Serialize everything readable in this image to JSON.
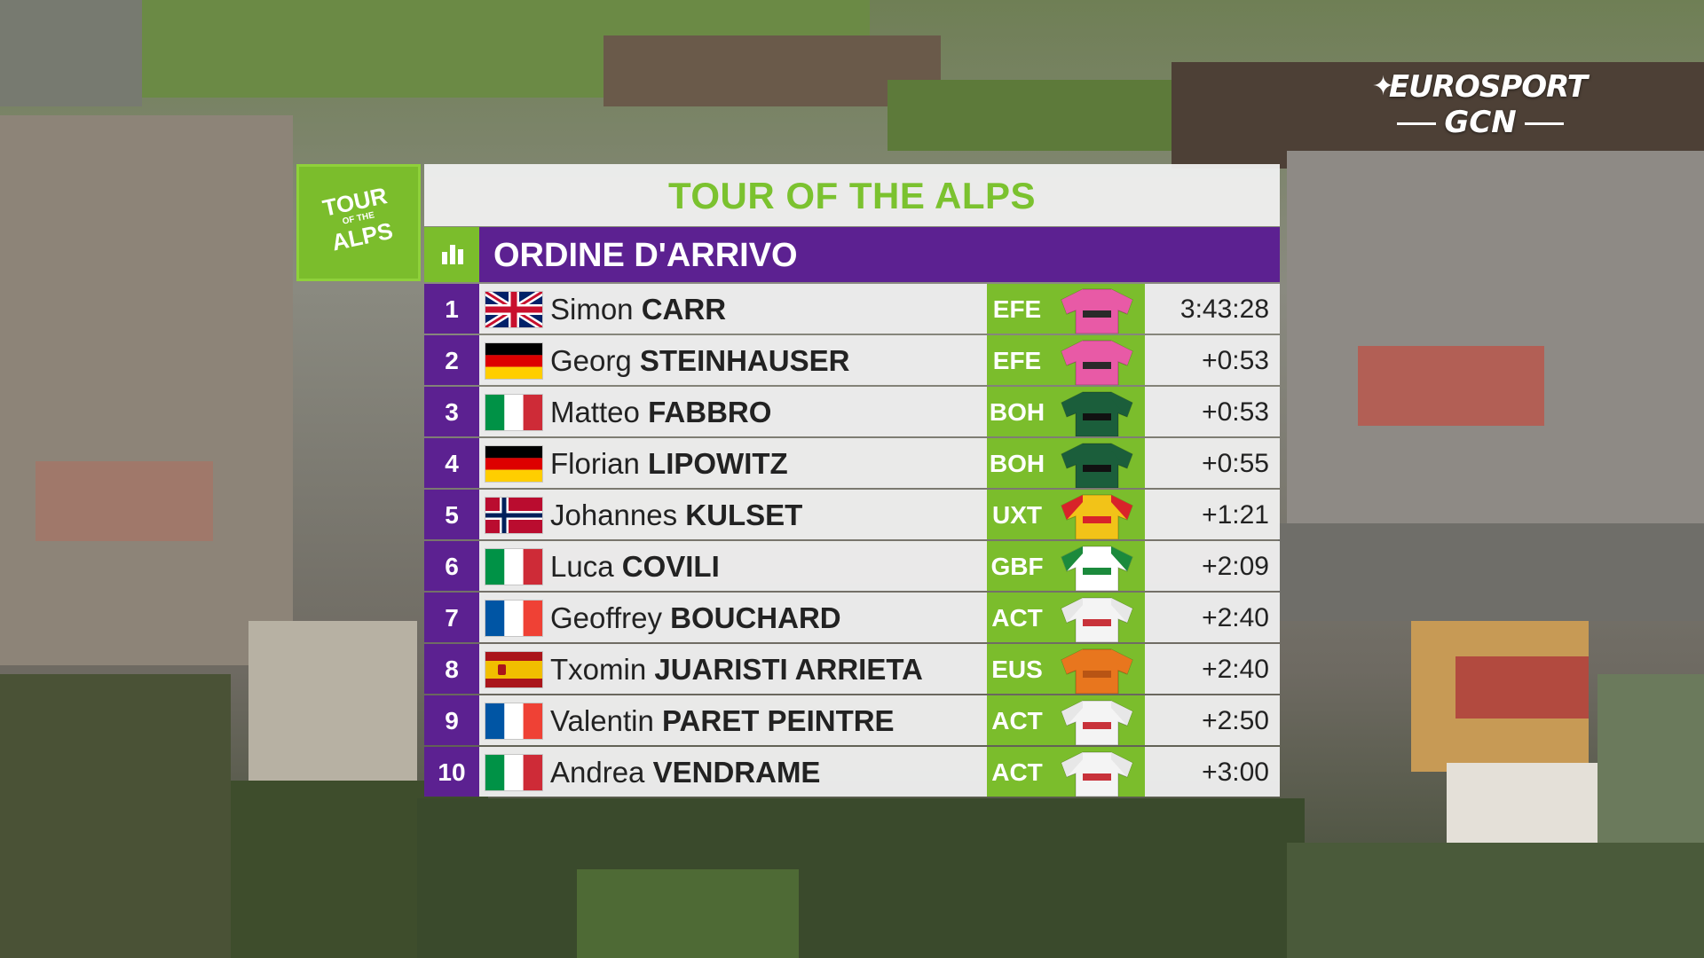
{
  "broadcaster": {
    "line1": "EUROSPORT",
    "line2": "GCN"
  },
  "race_logo": {
    "word1": "TOUR",
    "word2": "OF THE",
    "word3": "ALPS"
  },
  "title": "TOUR OF THE ALPS",
  "header": "ORDINE D'ARRIVO",
  "colors": {
    "purple": "#5c2191",
    "green": "#7bbd2c",
    "title_green": "#7bc22f"
  },
  "results": [
    {
      "pos": "1",
      "flag": "gb",
      "first": "Simon",
      "last": "CARR",
      "team": "EFE",
      "jersey": "ef",
      "time": "3:43:28"
    },
    {
      "pos": "2",
      "flag": "de",
      "first": "Georg",
      "last": "STEINHAUSER",
      "team": "EFE",
      "jersey": "ef",
      "time": "+0:53"
    },
    {
      "pos": "3",
      "flag": "it",
      "first": "Matteo",
      "last": "FABBRO",
      "team": "BOH",
      "jersey": "bora",
      "time": "+0:53"
    },
    {
      "pos": "4",
      "flag": "de",
      "first": "Florian",
      "last": "LIPOWITZ",
      "team": "BOH",
      "jersey": "bora",
      "time": "+0:55"
    },
    {
      "pos": "5",
      "flag": "no",
      "first": "Johannes",
      "last": "KULSET",
      "team": "UXT",
      "jersey": "uno",
      "time": "+1:21"
    },
    {
      "pos": "6",
      "flag": "it",
      "first": "Luca",
      "last": "COVILI",
      "team": "GBF",
      "jersey": "gbf",
      "time": "+2:09"
    },
    {
      "pos": "7",
      "flag": "fr",
      "first": "Geoffrey",
      "last": "BOUCHARD",
      "team": "ACT",
      "jersey": "act",
      "time": "+2:40"
    },
    {
      "pos": "8",
      "flag": "es",
      "first": "Txomin",
      "last": "JUARISTI ARRIETA",
      "team": "EUS",
      "jersey": "eus",
      "time": "+2:40"
    },
    {
      "pos": "9",
      "flag": "fr",
      "first": "Valentin",
      "last": "PARET PEINTRE",
      "team": "ACT",
      "jersey": "act",
      "time": "+2:50"
    },
    {
      "pos": "10",
      "flag": "it",
      "first": "Andrea",
      "last": "VENDRAME",
      "team": "ACT",
      "jersey": "act",
      "time": "+3:00"
    }
  ]
}
